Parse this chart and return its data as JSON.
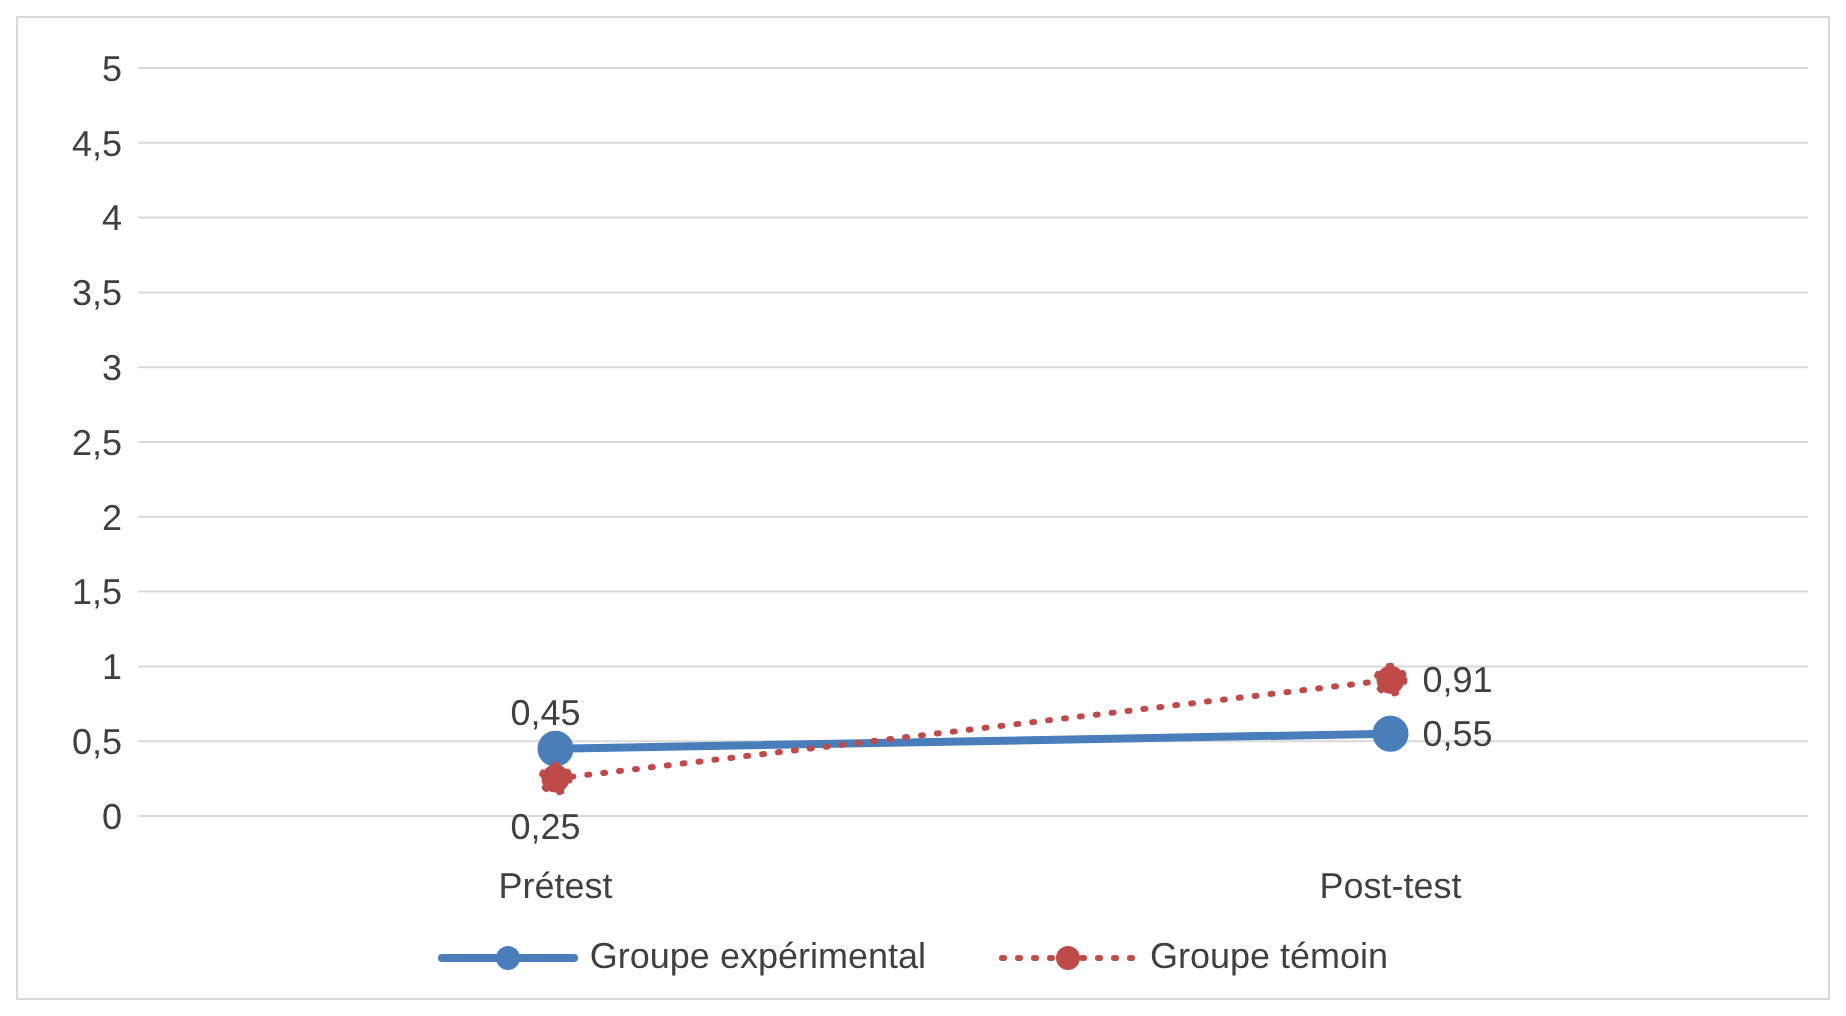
{
  "chart_data": {
    "type": "line",
    "categories": [
      "Prétest",
      "Post-test"
    ],
    "series": [
      {
        "name": "Groupe expérimental",
        "color": "#4a7ebb",
        "values": [
          0.45,
          0.55
        ],
        "value_labels": [
          "0,45",
          "0,55"
        ],
        "line_style": "solid"
      },
      {
        "name": "Groupe témoin",
        "color": "#be4b48",
        "values": [
          0.25,
          0.91
        ],
        "value_labels": [
          "0,25",
          "0,91"
        ],
        "line_style": "dotted"
      }
    ],
    "ylim": [
      0,
      5
    ],
    "yticks": [
      0,
      {
        "value": 0.5,
        "label": "0,5"
      },
      1,
      {
        "value": 1.5,
        "label": "1,5"
      },
      2,
      {
        "value": 2.5,
        "label": "2,5"
      },
      3,
      {
        "value": 3.5,
        "label": "3,5"
      },
      4,
      {
        "value": 4.5,
        "label": "4,5"
      },
      5
    ],
    "grid": "y",
    "legend": "bottom",
    "marker": "circle"
  }
}
